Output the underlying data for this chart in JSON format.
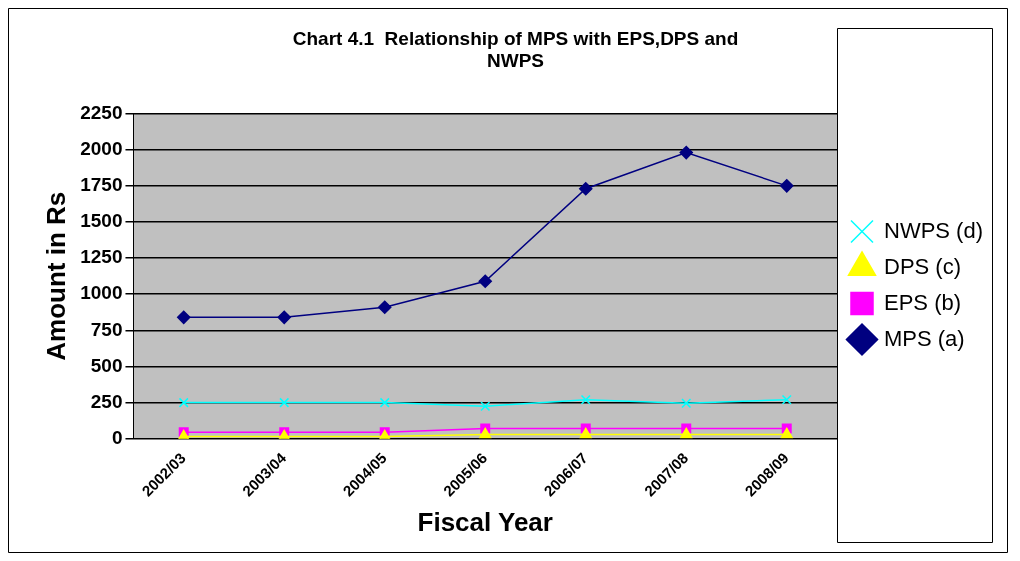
{
  "chart_data": {
    "type": "line",
    "title": [
      "Chart 4.1  Relationship of MPS with EPS,DPS and",
      "NWPS"
    ],
    "xlabel": "Fiscal Year",
    "ylabel": "Amount in Rs",
    "categories": [
      "2002/03",
      "2003/04",
      "2004/05",
      "2005/06",
      "2006/07",
      "2007/08",
      "2008/09"
    ],
    "series": [
      {
        "name": "MPS (a)",
        "color": "#000080",
        "marker": "diamond",
        "values": [
          840,
          840,
          910,
          1090,
          1730,
          1980,
          1750
        ]
      },
      {
        "name": "EPS (b)",
        "color": "#ff00ff",
        "marker": "square",
        "values": [
          45,
          45,
          45,
          70,
          70,
          70,
          70
        ]
      },
      {
        "name": "DPS (c)",
        "color": "#ffff00",
        "marker": "triangle",
        "values": [
          15,
          15,
          15,
          30,
          30,
          30,
          30
        ]
      },
      {
        "name": "NWPS (d)",
        "color": "#00ffff",
        "marker": "cross",
        "values": [
          250,
          250,
          250,
          225,
          270,
          245,
          270
        ]
      }
    ],
    "ylim": [
      0,
      2250
    ],
    "yticks": [
      0,
      250,
      500,
      750,
      1000,
      1250,
      1500,
      1750,
      2000,
      2250
    ],
    "grid": "y",
    "legend": "right"
  }
}
